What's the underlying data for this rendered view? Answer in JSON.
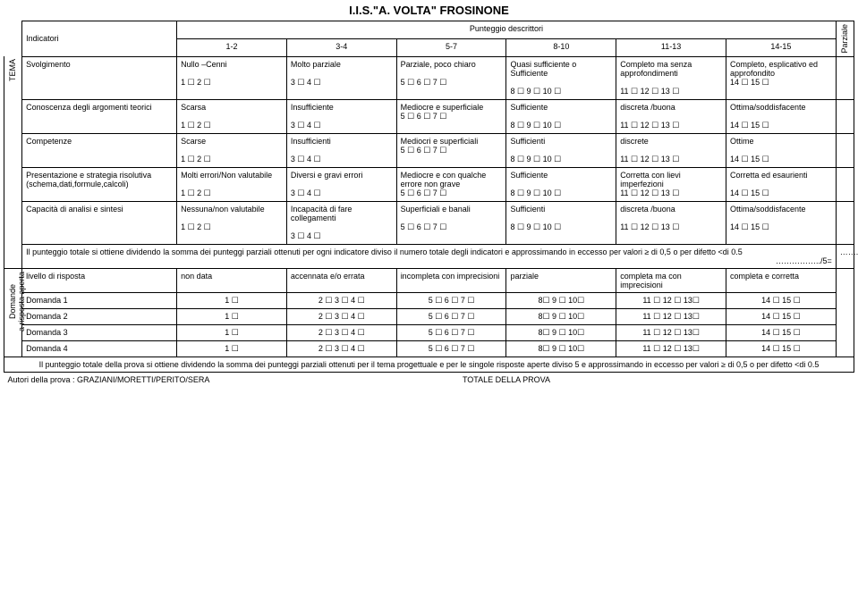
{
  "title": "I.I.S.\"A. VOLTA\" FROSINONE",
  "header": {
    "indicatori": "Indicatori",
    "punteggio": "Punteggio descrittori",
    "ranges": [
      "1-2",
      "3-4",
      "5-7",
      "8-10",
      "11-13",
      "14-15"
    ],
    "parziale": "Parziale"
  },
  "side": {
    "tema": "TEMA",
    "domande": "Domande\na risposta aperta"
  },
  "rows": [
    {
      "ind": "Svolgimento",
      "cells": [
        "Nullo –Cenni\n\n1 ☐   2 ☐",
        "Molto parziale\n\n3 ☐   4 ☐",
        "Parziale, poco chiaro\n\n5 ☐   6 ☐ 7 ☐",
        "Quasi sufficiente o Sufficiente\n\n8 ☐   9 ☐   10 ☐",
        "Completo ma senza approfondimenti\n\n11 ☐   12 ☐   13 ☐",
        "Completo, esplicativo ed approfondito\n14 ☐   15 ☐"
      ]
    },
    {
      "ind": "Conoscenza degli argomenti teorici",
      "cells": [
        "Scarsa\n\n1 ☐   2 ☐",
        "Insufficiente\n\n3 ☐   4 ☐",
        "Mediocre e superficiale\n5 ☐   6 ☐ 7 ☐",
        "Sufficiente\n\n8 ☐   9 ☐   10 ☐",
        "discreta /buona\n\n11 ☐   12 ☐   13 ☐",
        "Ottima/soddisfacente\n\n14 ☐   15 ☐"
      ]
    },
    {
      "ind": "Competenze",
      "cells": [
        "Scarse\n\n1 ☐   2 ☐",
        "Insufficienti\n\n3 ☐   4 ☐",
        "Mediocri e superficiali\n5 ☐   6 ☐ 7 ☐",
        "Sufficienti\n\n8 ☐   9 ☐   10 ☐",
        "discrete\n\n11 ☐   12 ☐   13 ☐",
        "Ottime\n\n14 ☐   15 ☐"
      ]
    },
    {
      "ind": "Presentazione e strategia risolutiva (schema,dati,formule,calcoli)",
      "cells": [
        "Molti errori/Non valutabile\n\n1 ☐   2 ☐",
        "Diversi e gravi errori\n\n3 ☐   4 ☐",
        "Mediocre e con qualche errore non grave\n5 ☐   6 ☐ 7 ☐",
        "Sufficiente\n\n8 ☐   9 ☐   10 ☐",
        "Corretta con lievi imperfezioni\n11 ☐   12 ☐   13 ☐",
        "Corretta ed esaurienti\n\n14 ☐   15 ☐"
      ]
    },
    {
      "ind": "Capacità di analisi e sintesi",
      "cells": [
        "Nessuna/non valutabile\n\n1 ☐   2 ☐",
        "Incapacità di fare collegamenti\n\n3 ☐   4 ☐",
        "Superficiali e banali\n\n5 ☐   6 ☐ 7 ☐",
        "Sufficienti\n\n8 ☐   9 ☐   10 ☐",
        "discreta /buona\n\n11 ☐   12 ☐   13 ☐",
        "Ottima/soddisfacente\n\n14 ☐   15 ☐"
      ]
    }
  ],
  "note1": "Il punteggio totale si ottiene dividendo la somma dei punteggi parziali ottenuti per ogni indicatore diviso il numero totale degli indicatori e approssimando in eccesso per valori ≥ di 0,5 o per difetto <di 0.5",
  "note1b": "……………../5=",
  "note1c": "……..",
  "domHead": {
    "ind": "livello di risposta",
    "cells": [
      "non data",
      "accennata e/o errata",
      "incompleta con imprecisioni",
      "parziale",
      "completa ma con imprecisioni",
      "completa e corretta"
    ]
  },
  "domRows": [
    "Domanda 1",
    "Domanda 2",
    "Domanda 3",
    "Domanda 4"
  ],
  "domBoxes": [
    "1 ☐",
    "2 ☐   3 ☐ 4 ☐",
    "5 ☐ 6 ☐   7 ☐",
    "8☐   9 ☐ 10☐",
    "11 ☐  12 ☐ 13☐",
    "14 ☐  15 ☐"
  ],
  "note2": "Il punteggio totale della prova si ottiene dividendo la somma dei punteggi parziali ottenuti per il tema progettuale e per le singole risposte aperte diviso 5 e approssimando in eccesso per valori ≥ di 0,5 o per difetto <di 0.5",
  "totale": "TOTALE DELLA PROVA",
  "autori": "Autori della prova : GRAZIANI/MORETTI/PERITO/SERA"
}
